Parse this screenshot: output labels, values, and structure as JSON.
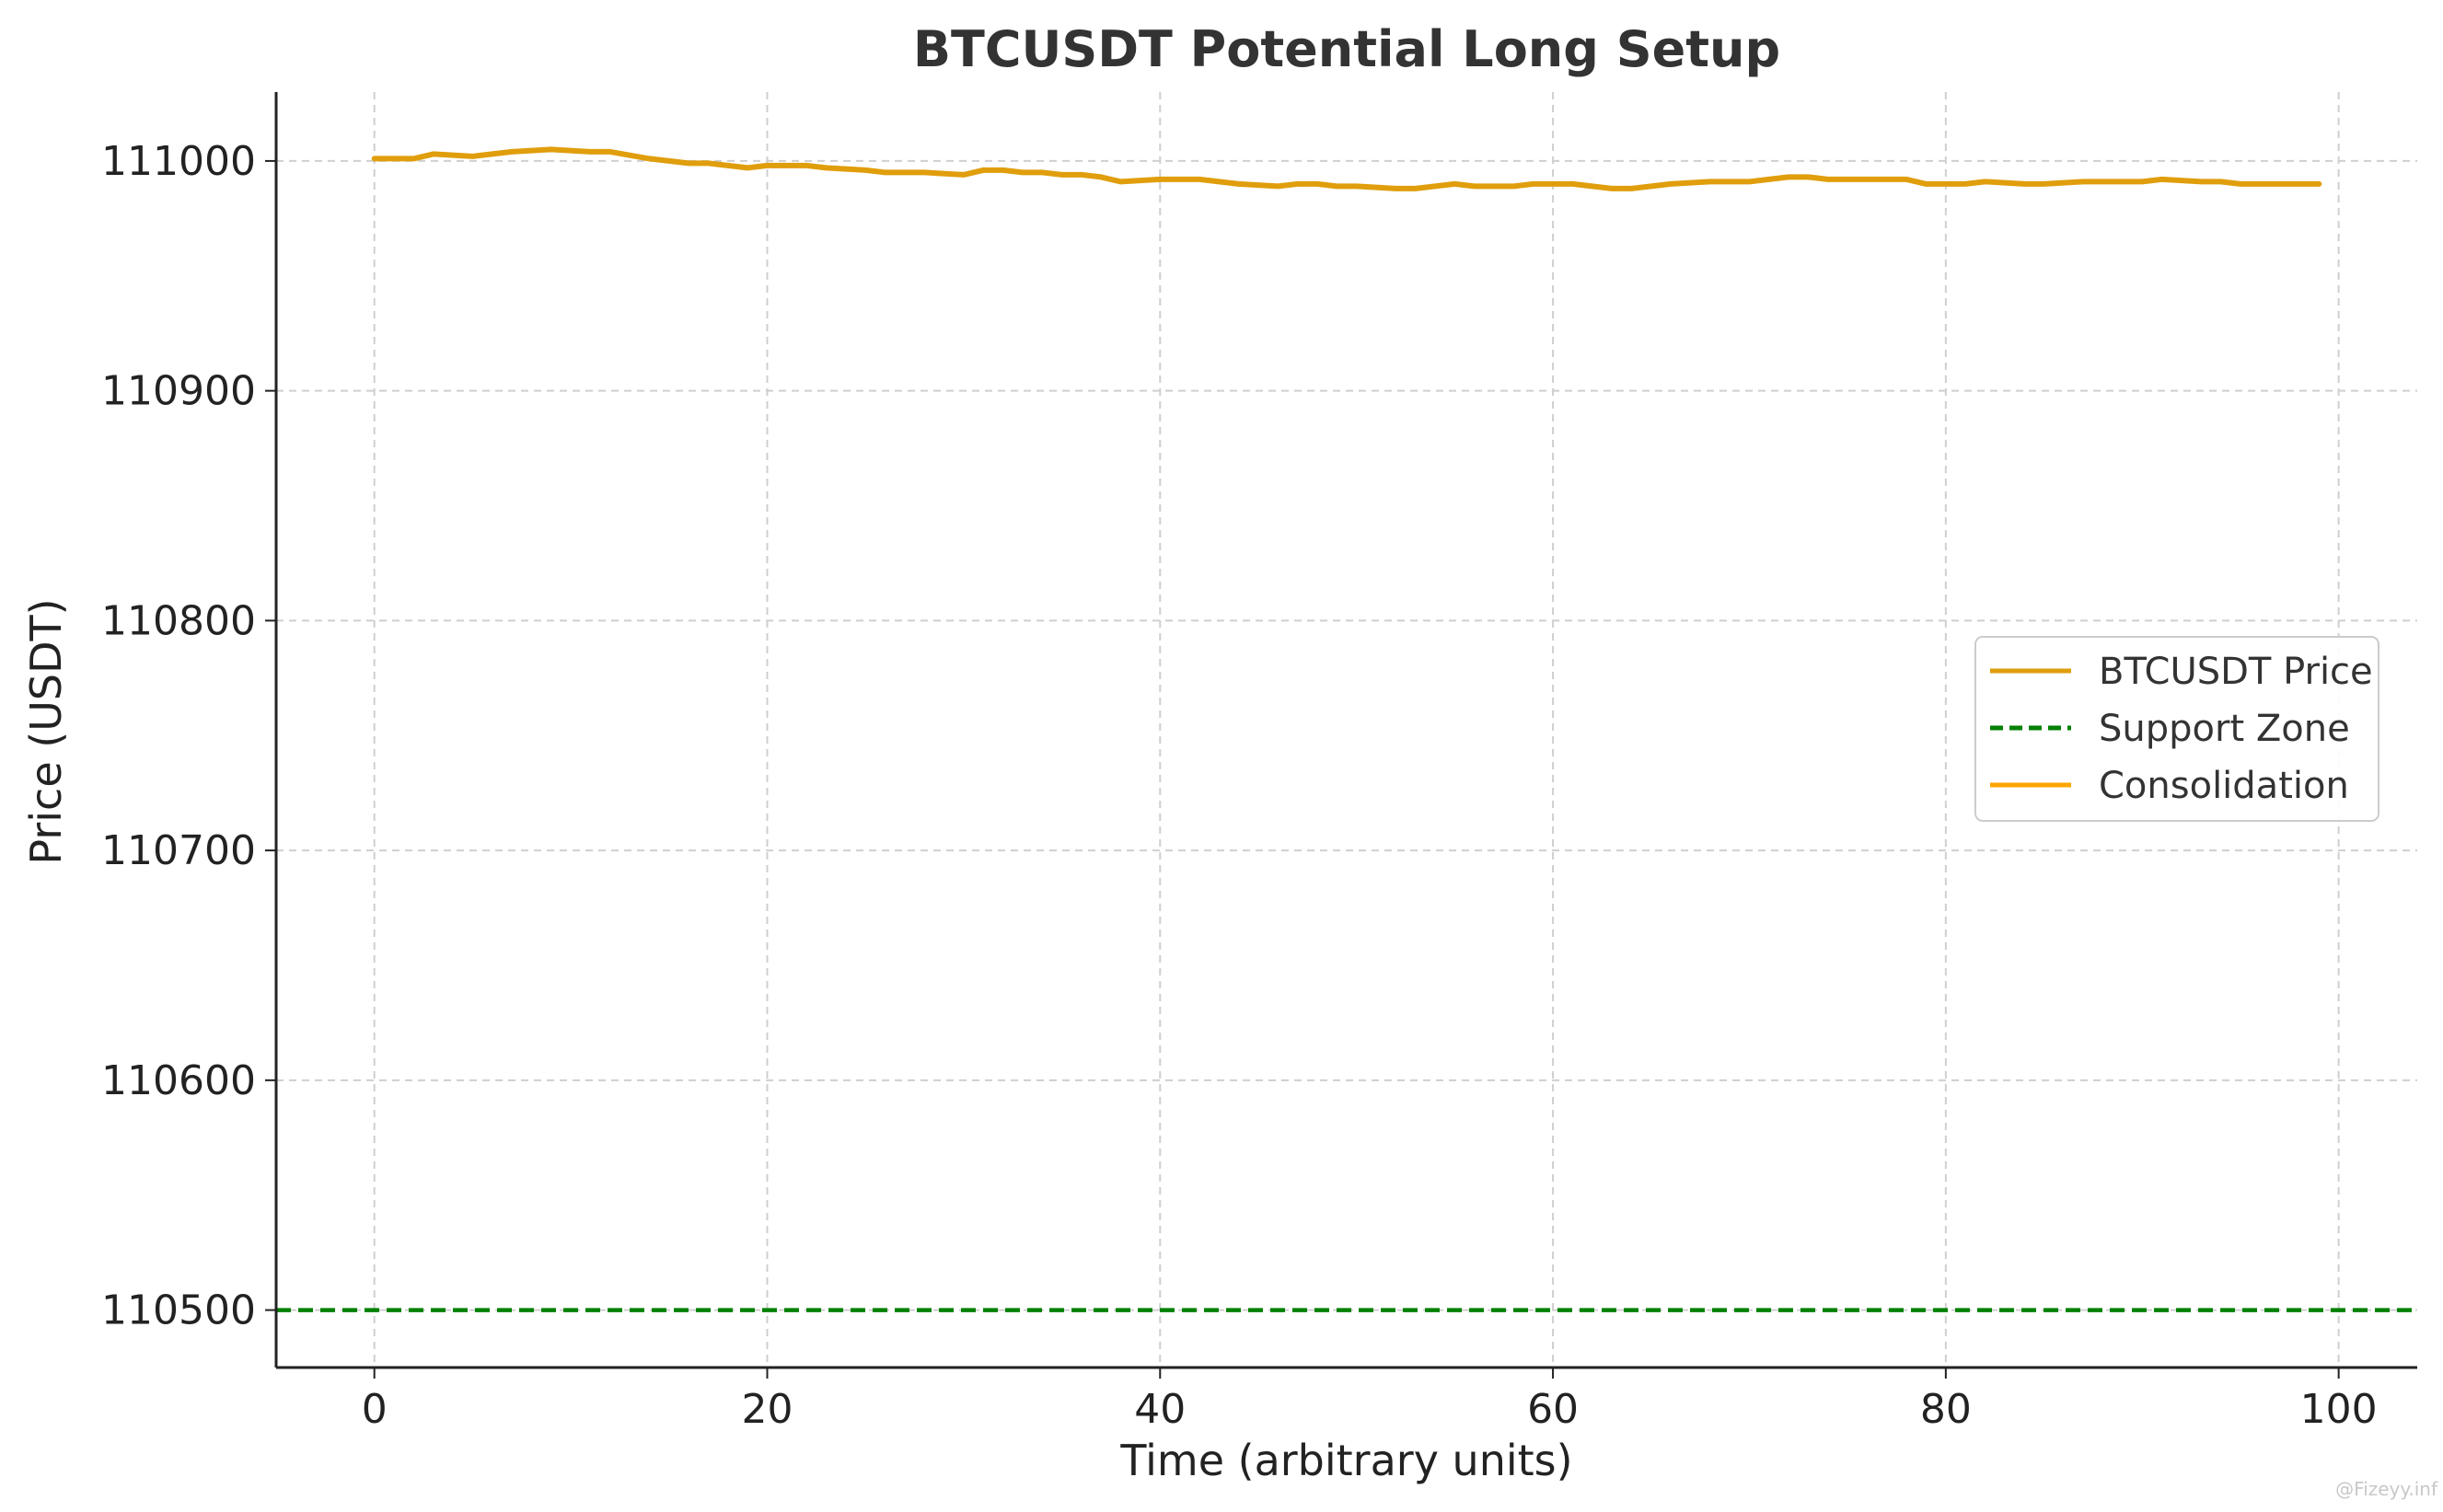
{
  "chart_data": {
    "type": "line",
    "title": "BTCUSDT Potential Long Setup",
    "xlabel": "Time (arbitrary units)",
    "ylabel": "Price (USDT)",
    "xlim": [
      -5,
      104
    ],
    "ylim": [
      110475,
      111030
    ],
    "x_ticks": [
      0,
      20,
      40,
      60,
      80,
      100
    ],
    "y_ticks": [
      110500,
      110600,
      110700,
      110800,
      110900,
      111000
    ],
    "grid": true,
    "legend_position": "center-right",
    "series": [
      {
        "name": "BTCUSDT Price",
        "color": "#e09e0c",
        "style": "solid",
        "x": [
          0,
          2,
          3,
          5,
          7,
          9,
          11,
          12,
          14,
          16,
          17,
          19,
          20,
          22,
          23,
          25,
          26,
          28,
          30,
          31,
          32,
          33,
          34,
          35,
          36,
          37,
          38,
          40,
          42,
          43,
          44,
          46,
          47,
          48,
          49,
          50,
          52,
          53,
          55,
          56,
          57,
          58,
          59,
          61,
          63,
          64,
          65,
          66,
          68,
          69,
          70,
          71,
          72,
          73,
          74,
          75,
          77,
          78,
          79,
          80,
          81,
          82,
          84,
          85,
          87,
          88,
          90,
          91,
          93,
          94,
          95,
          96,
          97,
          99
        ],
        "values": [
          111001,
          111001,
          111003,
          111002,
          111004,
          111005,
          111004,
          111004,
          111001,
          110999,
          110999,
          110997,
          110998,
          110998,
          110997,
          110996,
          110995,
          110995,
          110994,
          110996,
          110996,
          110995,
          110995,
          110994,
          110994,
          110993,
          110991,
          110992,
          110992,
          110991,
          110990,
          110989,
          110990,
          110990,
          110989,
          110989,
          110988,
          110988,
          110990,
          110989,
          110989,
          110989,
          110990,
          110990,
          110988,
          110988,
          110989,
          110990,
          110991,
          110991,
          110991,
          110992,
          110993,
          110993,
          110992,
          110992,
          110992,
          110992,
          110990,
          110990,
          110990,
          110991,
          110990,
          110990,
          110991,
          110991,
          110991,
          110992,
          110991,
          110991,
          110990,
          110990,
          110990,
          110990
        ]
      },
      {
        "name": "Support Zone",
        "color": "#008000",
        "style": "dashed",
        "values": [
          110500
        ]
      },
      {
        "name": "Consolidation",
        "color": "#ffa500",
        "style": "solid",
        "values": []
      }
    ],
    "watermark": "@Fizeyy.inf"
  }
}
